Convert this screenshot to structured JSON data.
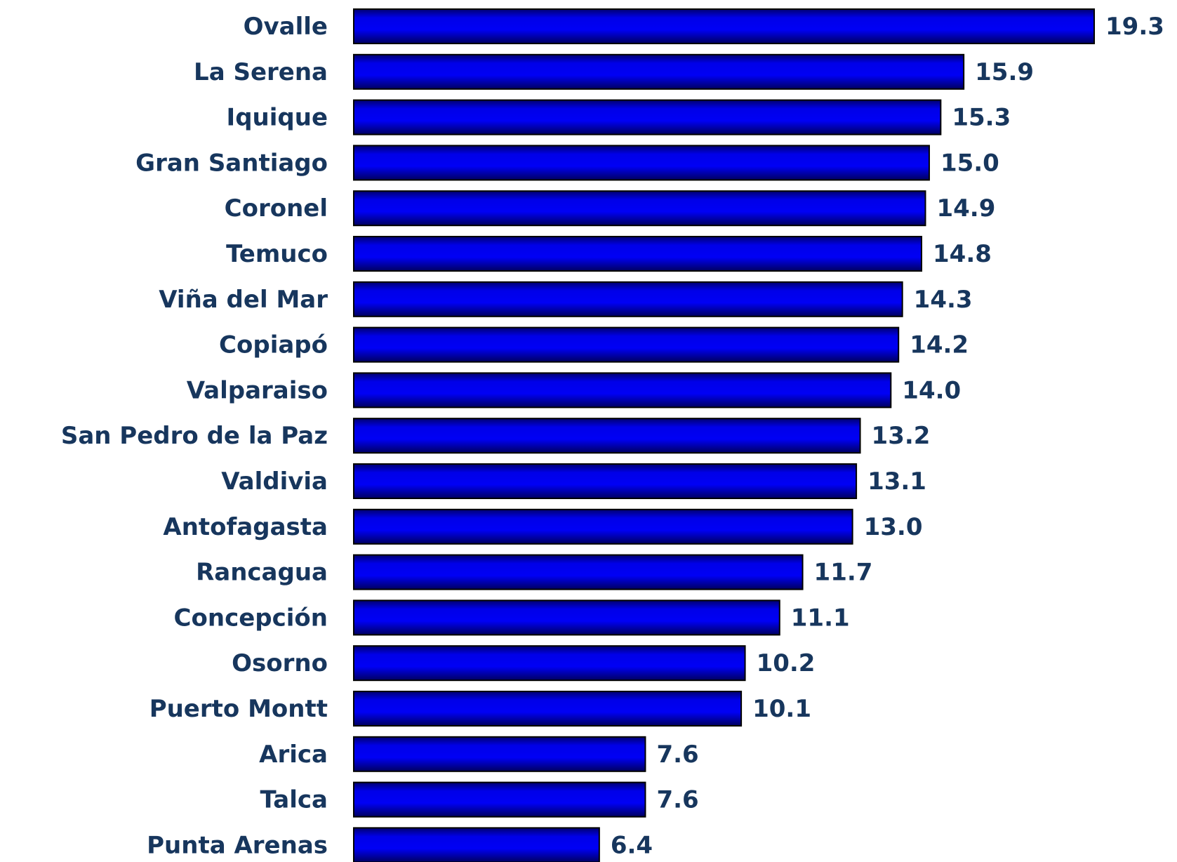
{
  "chart_data": {
    "type": "bar",
    "orientation": "horizontal",
    "categories": [
      "Ovalle",
      "La Serena",
      "Iquique",
      "Gran Santiago",
      "Coronel",
      "Temuco",
      "Viña del Mar",
      "Copiapó",
      "Valparaiso",
      "San Pedro de la Paz",
      "Valdivia",
      "Antofagasta",
      "Rancagua",
      "Concepción",
      "Osorno",
      "Puerto Montt",
      "Arica",
      "Talca",
      "Punta Arenas"
    ],
    "values": [
      19.3,
      15.9,
      15.3,
      15.0,
      14.9,
      14.8,
      14.3,
      14.2,
      14.0,
      13.2,
      13.1,
      13.0,
      11.7,
      11.1,
      10.2,
      10.1,
      7.6,
      7.6,
      6.4
    ],
    "value_labels": [
      "19.3",
      "15.9",
      "15.3",
      "15.0",
      "14.9",
      "14.8",
      "14.3",
      "14.2",
      "14.0",
      "13.2",
      "13.1",
      "13.0",
      "11.7",
      "11.1",
      "10.2",
      "10.1",
      "7.6",
      "7.6",
      "6.4"
    ],
    "color": "#0000ee"
  }
}
